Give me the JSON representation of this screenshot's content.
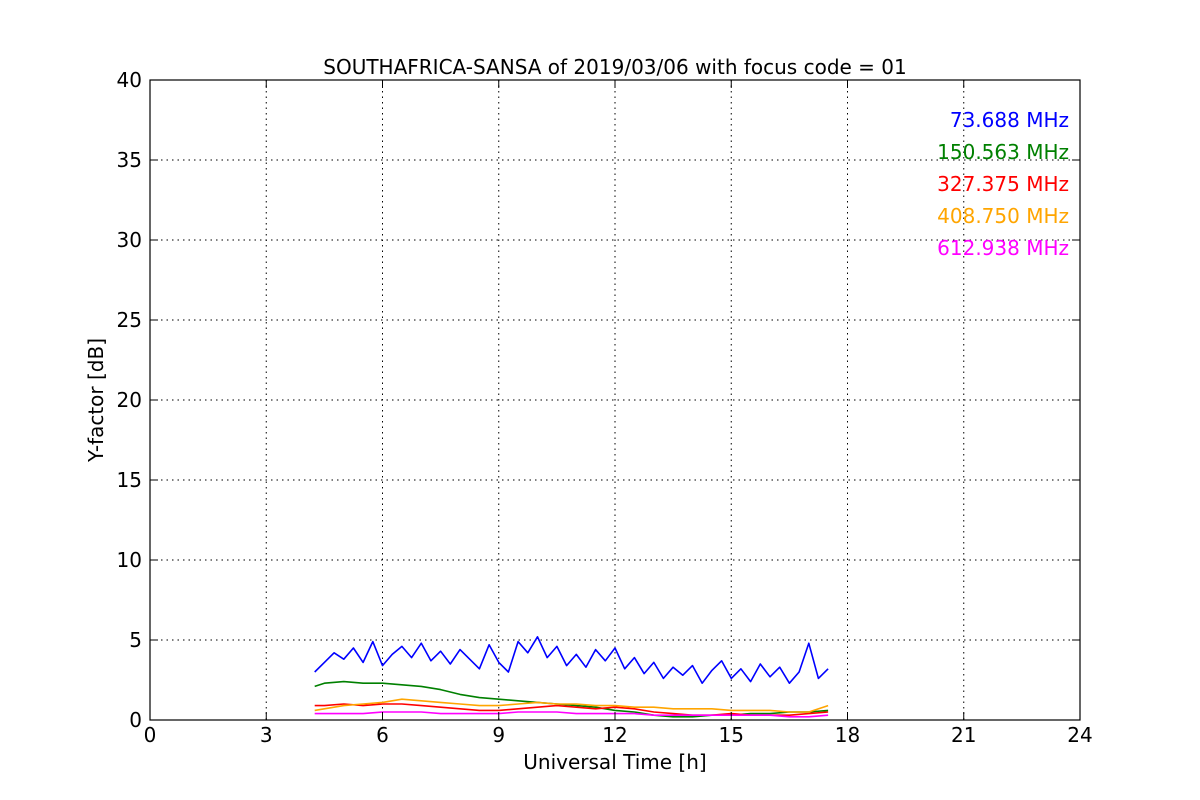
{
  "chart_data": {
    "type": "line",
    "title": "SOUTHAFRICA-SANSA of 2019/03/06 with focus code = 01",
    "xlabel": "Universal Time [h]",
    "ylabel": "Y-factor [dB]",
    "xlim": [
      0,
      24
    ],
    "ylim": [
      0,
      40
    ],
    "xticks": [
      0,
      3,
      6,
      9,
      12,
      15,
      18,
      21,
      24
    ],
    "yticks": [
      0,
      5,
      10,
      15,
      20,
      25,
      30,
      35,
      40
    ],
    "xtick_labels": [
      "0",
      "3",
      "6",
      "9",
      "12",
      "15",
      "18",
      "21",
      "24"
    ],
    "ytick_labels": [
      "0",
      "5",
      "10",
      "15",
      "20",
      "25",
      "30",
      "35",
      "40"
    ],
    "grid": true,
    "legend_position": "top-right",
    "series": [
      {
        "name": "73.688 MHz",
        "color": "#0000ff",
        "x": [
          4.25,
          4.5,
          4.75,
          5.0,
          5.25,
          5.5,
          5.75,
          6.0,
          6.25,
          6.5,
          6.75,
          7.0,
          7.25,
          7.5,
          7.75,
          8.0,
          8.25,
          8.5,
          8.75,
          9.0,
          9.25,
          9.5,
          9.75,
          10.0,
          10.25,
          10.5,
          10.75,
          11.0,
          11.25,
          11.5,
          11.75,
          12.0,
          12.25,
          12.5,
          12.75,
          13.0,
          13.25,
          13.5,
          13.75,
          14.0,
          14.25,
          14.5,
          14.75,
          15.0,
          15.25,
          15.5,
          15.75,
          16.0,
          16.25,
          16.5,
          16.75,
          17.0,
          17.25,
          17.5
        ],
        "values": [
          3.0,
          3.6,
          4.2,
          3.8,
          4.5,
          3.6,
          4.9,
          3.4,
          4.1,
          4.6,
          3.9,
          4.8,
          3.7,
          4.3,
          3.5,
          4.4,
          3.8,
          3.2,
          4.7,
          3.6,
          3.0,
          4.9,
          4.2,
          5.2,
          3.9,
          4.6,
          3.4,
          4.1,
          3.3,
          4.4,
          3.7,
          4.5,
          3.2,
          3.9,
          2.9,
          3.6,
          2.6,
          3.3,
          2.8,
          3.4,
          2.3,
          3.1,
          3.7,
          2.6,
          3.2,
          2.4,
          3.5,
          2.7,
          3.3,
          2.3,
          3.0,
          4.8,
          2.6,
          3.2
        ]
      },
      {
        "name": "150.563 MHz",
        "color": "#008000",
        "x": [
          4.25,
          4.5,
          5.0,
          5.5,
          6.0,
          6.5,
          7.0,
          7.5,
          8.0,
          8.5,
          9.0,
          9.5,
          10.0,
          10.5,
          11.0,
          11.5,
          12.0,
          12.5,
          13.0,
          13.5,
          14.0,
          14.5,
          15.0,
          15.5,
          16.0,
          16.5,
          17.0,
          17.5
        ],
        "values": [
          2.1,
          2.3,
          2.4,
          2.3,
          2.3,
          2.2,
          2.1,
          1.9,
          1.6,
          1.4,
          1.3,
          1.2,
          1.1,
          1.0,
          0.9,
          0.8,
          0.6,
          0.5,
          0.3,
          0.2,
          0.2,
          0.3,
          0.3,
          0.4,
          0.4,
          0.5,
          0.5,
          0.6
        ]
      },
      {
        "name": "327.375 MHz",
        "color": "#ff0000",
        "x": [
          4.25,
          4.5,
          5.0,
          5.5,
          6.0,
          6.5,
          7.0,
          7.5,
          8.0,
          8.5,
          9.0,
          9.5,
          10.0,
          10.5,
          11.0,
          11.5,
          12.0,
          12.5,
          13.0,
          13.5,
          14.0,
          14.5,
          15.0,
          15.5,
          16.0,
          16.5,
          17.0,
          17.5
        ],
        "values": [
          0.9,
          0.9,
          1.0,
          0.9,
          1.0,
          1.0,
          0.9,
          0.8,
          0.7,
          0.6,
          0.6,
          0.7,
          0.8,
          0.9,
          0.8,
          0.7,
          0.8,
          0.7,
          0.5,
          0.4,
          0.3,
          0.3,
          0.4,
          0.3,
          0.3,
          0.3,
          0.4,
          0.5
        ]
      },
      {
        "name": "408.750 MHz",
        "color": "#ffa500",
        "x": [
          4.25,
          4.5,
          5.0,
          5.5,
          6.0,
          6.5,
          7.0,
          7.5,
          8.0,
          8.5,
          9.0,
          9.5,
          10.0,
          10.5,
          11.0,
          11.5,
          12.0,
          12.5,
          13.0,
          13.5,
          14.0,
          14.5,
          15.0,
          15.5,
          16.0,
          16.5,
          17.0,
          17.5
        ],
        "values": [
          0.6,
          0.7,
          0.9,
          1.0,
          1.1,
          1.3,
          1.2,
          1.1,
          1.0,
          0.9,
          0.9,
          1.0,
          1.1,
          1.0,
          1.0,
          0.9,
          0.9,
          0.8,
          0.8,
          0.7,
          0.7,
          0.7,
          0.6,
          0.6,
          0.6,
          0.5,
          0.5,
          0.9
        ]
      },
      {
        "name": "612.938 MHz",
        "color": "#ff00ff",
        "x": [
          4.25,
          4.5,
          5.0,
          5.5,
          6.0,
          6.5,
          7.0,
          7.5,
          8.0,
          8.5,
          9.0,
          9.5,
          10.0,
          10.5,
          11.0,
          11.5,
          12.0,
          12.5,
          13.0,
          13.5,
          14.0,
          14.5,
          15.0,
          15.5,
          16.0,
          16.5,
          17.0,
          17.5
        ],
        "values": [
          0.4,
          0.4,
          0.4,
          0.4,
          0.5,
          0.5,
          0.5,
          0.4,
          0.4,
          0.4,
          0.4,
          0.5,
          0.5,
          0.5,
          0.4,
          0.4,
          0.4,
          0.4,
          0.3,
          0.3,
          0.3,
          0.3,
          0.3,
          0.3,
          0.3,
          0.2,
          0.2,
          0.3
        ]
      }
    ]
  }
}
